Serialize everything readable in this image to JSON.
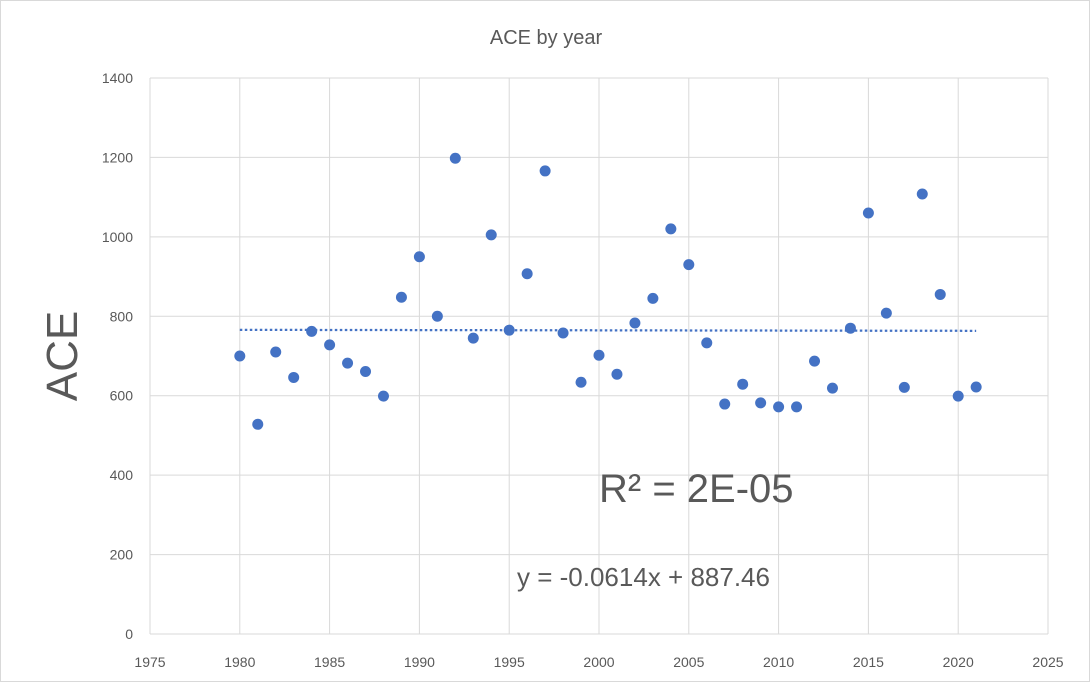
{
  "chart_data": {
    "type": "scatter",
    "title": "ACE by year",
    "xlabel": "",
    "ylabel": "ACE",
    "xlim": [
      1975,
      2025
    ],
    "ylim": [
      0,
      1400
    ],
    "xticks": [
      1975,
      1980,
      1985,
      1990,
      1995,
      2000,
      2005,
      2010,
      2015,
      2020,
      2025
    ],
    "yticks": [
      0,
      200,
      400,
      600,
      800,
      1000,
      1200,
      1400
    ],
    "grid": true,
    "series": [
      {
        "name": "ACE",
        "color": "#4472c4",
        "x": [
          1980,
          1981,
          1982,
          1983,
          1984,
          1985,
          1986,
          1987,
          1988,
          1989,
          1990,
          1991,
          1992,
          1993,
          1994,
          1995,
          1996,
          1997,
          1998,
          1999,
          2000,
          2001,
          2002,
          2003,
          2004,
          2005,
          2006,
          2007,
          2008,
          2009,
          2010,
          2011,
          2012,
          2013,
          2014,
          2015,
          2016,
          2017,
          2018,
          2019,
          2020,
          2021
        ],
        "y": [
          700,
          528,
          710,
          646,
          762,
          728,
          682,
          661,
          599,
          848,
          950,
          800,
          1198,
          745,
          1005,
          765,
          907,
          1166,
          758,
          634,
          702,
          654,
          783,
          845,
          1020,
          930,
          733,
          579,
          629,
          582,
          572,
          572,
          687,
          619,
          770,
          1060,
          808,
          621,
          1108,
          855,
          599,
          622
        ]
      }
    ],
    "trendline": {
      "type": "linear",
      "slope": -0.0614,
      "intercept": 887.46,
      "x_range": [
        1980,
        2021
      ],
      "color": "#4472c4",
      "style": "dotted",
      "equation_label": "y = -0.0614x + 887.46",
      "r2_label": "R² = 2E-05"
    }
  }
}
